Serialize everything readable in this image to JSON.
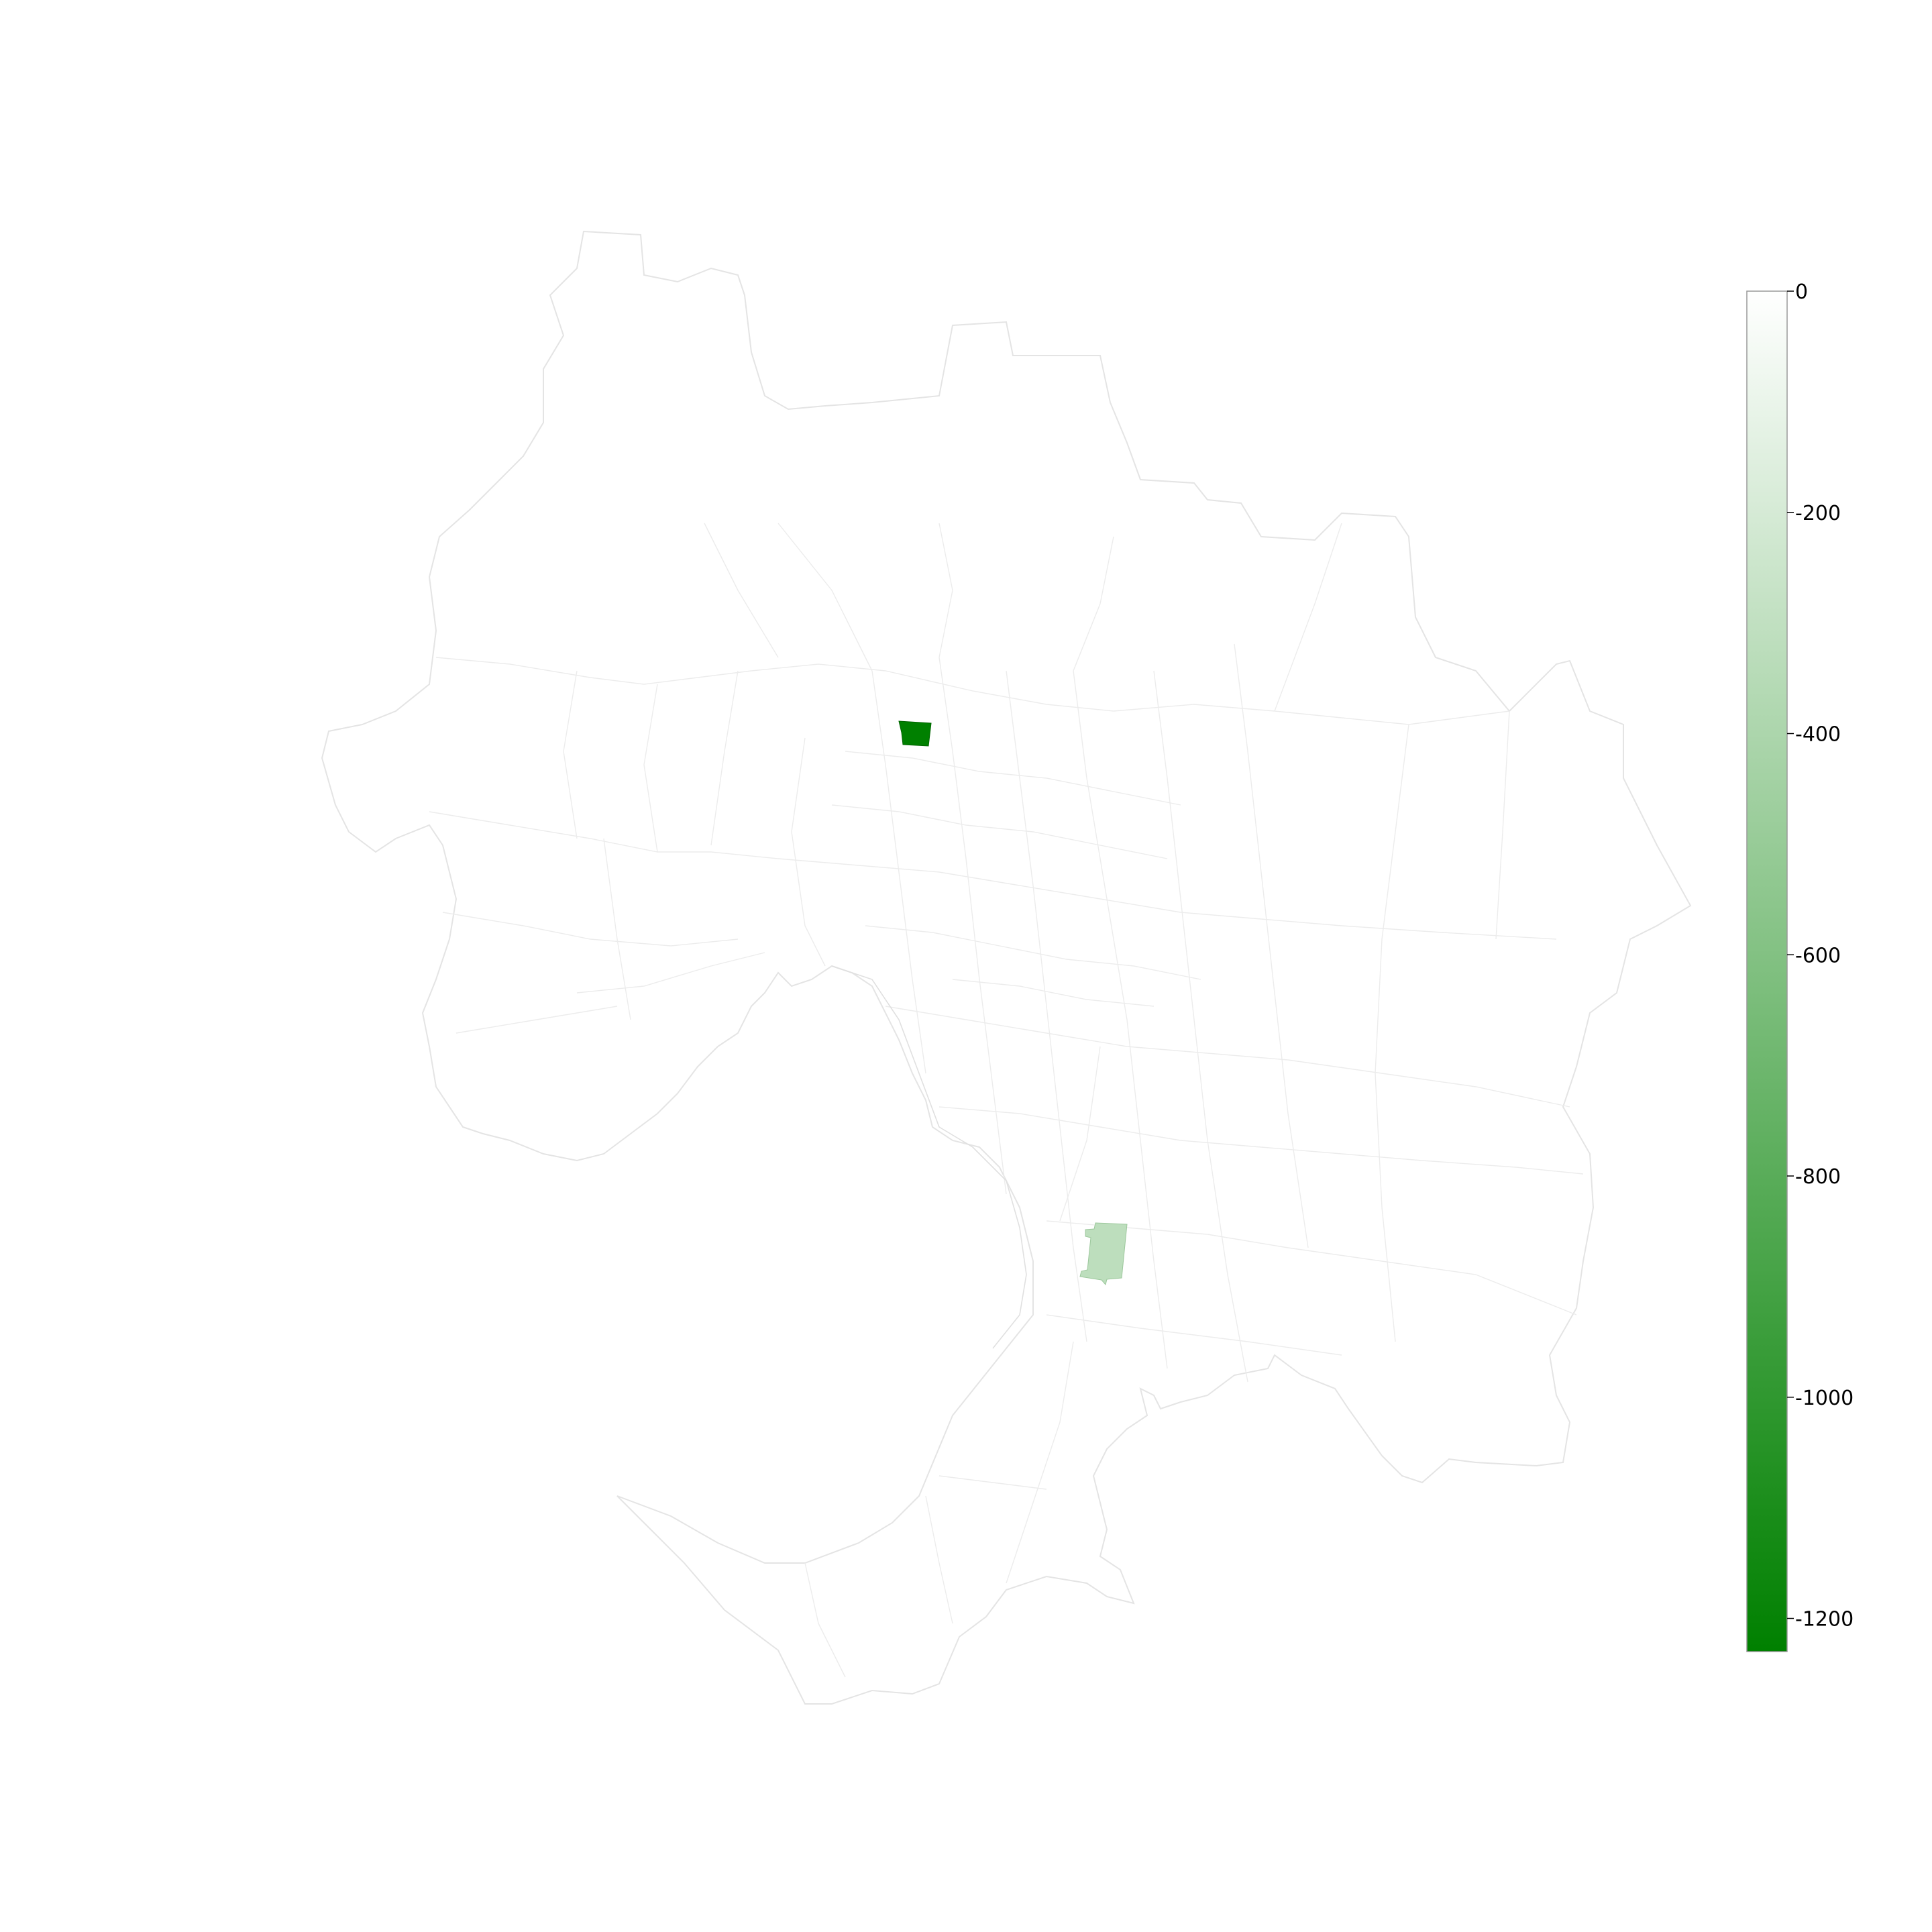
{
  "map": {
    "highlighted_regions": [
      {
        "value": -1230
      },
      {
        "value": -320
      }
    ]
  },
  "colorbar": {
    "min": -1230,
    "max": 0,
    "color_low": "#008000",
    "color_high": "#ffffff",
    "ticks": [
      {
        "value": 0,
        "label": "0"
      },
      {
        "value": -200,
        "label": "-200"
      },
      {
        "value": -400,
        "label": "-400"
      },
      {
        "value": -600,
        "label": "-600"
      },
      {
        "value": -800,
        "label": "-800"
      },
      {
        "value": -1000,
        "label": "-1000"
      },
      {
        "value": -1200,
        "label": "-1200"
      }
    ]
  }
}
